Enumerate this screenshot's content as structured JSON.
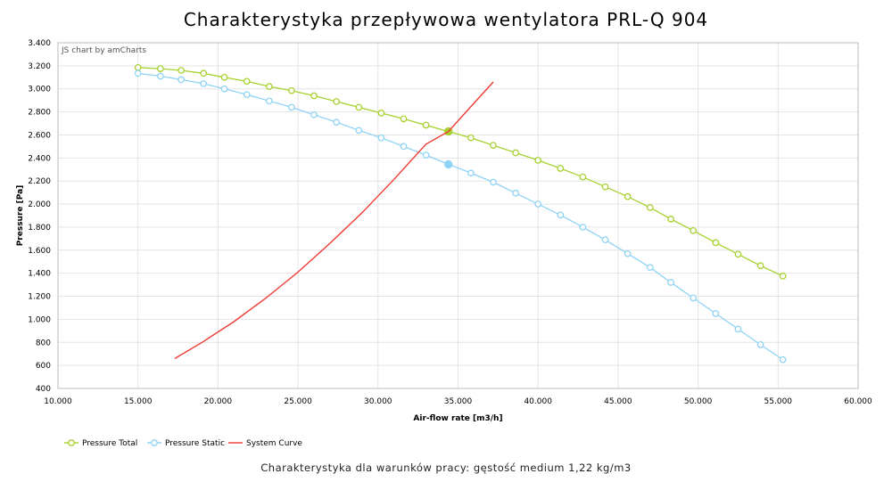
{
  "chart_data": {
    "type": "line",
    "title": "Charakterystyka przepływowa wentylatora PRL-Q 904",
    "subtitle": "Charakterystyka dla warunków pracy: gęstość medium 1,22 kg/m3",
    "credit": "JS chart by amCharts",
    "xlabel": "Air-flow rate [m3/h]",
    "ylabel": "Pressure [Pa]",
    "xlim": [
      10000,
      60000
    ],
    "ylim": [
      400,
      3400
    ],
    "x_ticks": [
      "10.000",
      "15.000",
      "20.000",
      "25.000",
      "30.000",
      "35.000",
      "40.000",
      "45.000",
      "50.000",
      "55.000",
      "60.000"
    ],
    "y_ticks": [
      "400",
      "600",
      "800",
      "1.000",
      "1.200",
      "1.400",
      "1.600",
      "1.800",
      "2.000",
      "2.200",
      "2.400",
      "2.600",
      "2.800",
      "3.000",
      "3.200",
      "3.400"
    ],
    "x_tick_values": [
      10000,
      15000,
      20000,
      25000,
      30000,
      35000,
      40000,
      45000,
      50000,
      55000,
      60000
    ],
    "y_tick_values": [
      400,
      600,
      800,
      1000,
      1200,
      1400,
      1600,
      1800,
      2000,
      2200,
      2400,
      2600,
      2800,
      3000,
      3200,
      3400
    ],
    "grid": true,
    "legend_position": "bottom-left",
    "series": [
      {
        "name": "Pressure Total",
        "color": "#a6d12e",
        "marker": "circle",
        "x": [
          15000,
          16400,
          17700,
          19100,
          20400,
          21800,
          23200,
          24600,
          26000,
          27400,
          28800,
          30200,
          31600,
          33000,
          34400,
          35800,
          37200,
          38600,
          40000,
          41400,
          42800,
          44200,
          45600,
          47000,
          48300,
          49700,
          51100,
          52500,
          53900,
          55300
        ],
        "y": [
          3185,
          3175,
          3160,
          3135,
          3100,
          3065,
          3020,
          2985,
          2940,
          2890,
          2840,
          2790,
          2740,
          2685,
          2630,
          2575,
          2510,
          2445,
          2380,
          2310,
          2235,
          2150,
          2065,
          1970,
          1870,
          1770,
          1665,
          1565,
          1465,
          1375
        ],
        "highlight": {
          "x": 34400,
          "y": 2630
        }
      },
      {
        "name": "Pressure Static",
        "color": "#8fd3f5",
        "marker": "circle",
        "x": [
          15000,
          16400,
          17700,
          19100,
          20400,
          21800,
          23200,
          24600,
          26000,
          27400,
          28800,
          30200,
          31600,
          33000,
          34400,
          35800,
          37200,
          38600,
          40000,
          41400,
          42800,
          44200,
          45600,
          47000,
          48300,
          49700,
          51100,
          52500,
          53900,
          55300
        ],
        "y": [
          3135,
          3110,
          3080,
          3045,
          3000,
          2950,
          2895,
          2840,
          2775,
          2710,
          2640,
          2575,
          2500,
          2425,
          2345,
          2270,
          2190,
          2095,
          2000,
          1905,
          1800,
          1690,
          1570,
          1450,
          1320,
          1185,
          1050,
          915,
          780,
          650
        ],
        "highlight": {
          "x": 34400,
          "y": 2345
        }
      },
      {
        "name": "System Curve",
        "color": "#ee3b33",
        "marker": "none",
        "x": [
          17300,
          19000,
          21000,
          23000,
          25000,
          27000,
          29000,
          31000,
          33000,
          34400,
          35500,
          37200
        ],
        "y": [
          660,
          800,
          980,
          1185,
          1410,
          1660,
          1925,
          2215,
          2520,
          2630,
          2800,
          3060
        ]
      }
    ]
  }
}
